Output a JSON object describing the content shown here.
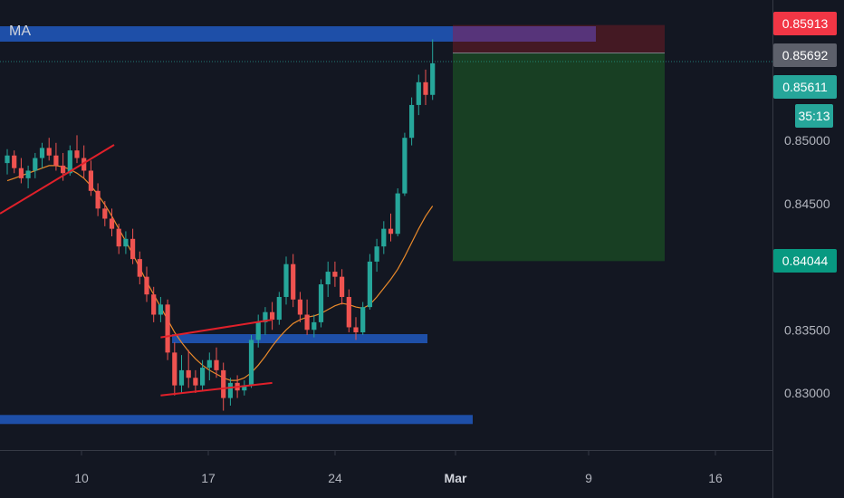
{
  "chart_data": {
    "type": "candlestick",
    "indicator_label": "MA",
    "y_axis": {
      "ticks": [
        0.83,
        0.835,
        0.84,
        0.845,
        0.85
      ],
      "tick_labels": [
        "0.83000",
        "0.83500",
        "0.84000",
        "0.84500",
        "0.85000"
      ]
    },
    "x_axis": {
      "tick_labels": [
        "10",
        "17",
        "24",
        "Mar",
        "9",
        "16"
      ]
    },
    "price_tags": [
      {
        "name": "stop-loss",
        "label": "0.85913",
        "value": 0.85913,
        "color": "#f23645"
      },
      {
        "name": "entry",
        "label": "0.85692",
        "value": 0.85692,
        "color": "#5d606b"
      },
      {
        "name": "last-price",
        "label": "0.85611",
        "value": 0.85611,
        "color": "#26a69a"
      },
      {
        "name": "countdown",
        "label": "35:13",
        "color": "#26a69a"
      },
      {
        "name": "take-profit",
        "label": "0.84044",
        "value": 0.84044,
        "color": "#089981"
      }
    ],
    "candles": {
      "up_color": "#26a69a",
      "down_color": "#ef5350",
      "ohlc": [
        [
          0.8482,
          0.8493,
          0.8473,
          0.8488
        ],
        [
          0.8488,
          0.8492,
          0.8474,
          0.8478
        ],
        [
          0.8478,
          0.8486,
          0.8466,
          0.847
        ],
        [
          0.847,
          0.848,
          0.8462,
          0.8476
        ],
        [
          0.8476,
          0.849,
          0.847,
          0.8486
        ],
        [
          0.8486,
          0.8498,
          0.8478,
          0.8494
        ],
        [
          0.8494,
          0.8502,
          0.8484,
          0.8488
        ],
        [
          0.8488,
          0.8498,
          0.8476,
          0.848
        ],
        [
          0.848,
          0.849,
          0.8468,
          0.8474
        ],
        [
          0.8474,
          0.8496,
          0.8472,
          0.8492
        ],
        [
          0.8492,
          0.8504,
          0.8482,
          0.8486
        ],
        [
          0.8486,
          0.8496,
          0.847,
          0.8476
        ],
        [
          0.8476,
          0.8484,
          0.8456,
          0.846
        ],
        [
          0.846,
          0.8466,
          0.844,
          0.8446
        ],
        [
          0.8446,
          0.8452,
          0.8432,
          0.8438
        ],
        [
          0.8438,
          0.8446,
          0.8424,
          0.843
        ],
        [
          0.843,
          0.8434,
          0.841,
          0.8416
        ],
        [
          0.8416,
          0.8428,
          0.841,
          0.8422
        ],
        [
          0.8422,
          0.843,
          0.8402,
          0.8406
        ],
        [
          0.8406,
          0.8412,
          0.8386,
          0.8392
        ],
        [
          0.8392,
          0.84,
          0.8372,
          0.8378
        ],
        [
          0.8378,
          0.8384,
          0.8356,
          0.8362
        ],
        [
          0.8362,
          0.8376,
          0.8356,
          0.837
        ],
        [
          0.837,
          0.8374,
          0.8326,
          0.8332
        ],
        [
          0.8332,
          0.834,
          0.8298,
          0.8306
        ],
        [
          0.8306,
          0.833,
          0.83,
          0.8318
        ],
        [
          0.8318,
          0.8334,
          0.8304,
          0.8312
        ],
        [
          0.8312,
          0.8318,
          0.83,
          0.8306
        ],
        [
          0.8306,
          0.8326,
          0.8302,
          0.832
        ],
        [
          0.832,
          0.8332,
          0.831,
          0.8326
        ],
        [
          0.8326,
          0.8336,
          0.8312,
          0.8318
        ],
        [
          0.8318,
          0.8324,
          0.8286,
          0.8296
        ],
        [
          0.8296,
          0.8312,
          0.829,
          0.8308
        ],
        [
          0.8308,
          0.8314,
          0.8296,
          0.8302
        ],
        [
          0.8302,
          0.831,
          0.8298,
          0.8306
        ],
        [
          0.8306,
          0.8346,
          0.8304,
          0.8342
        ],
        [
          0.8342,
          0.8362,
          0.8336,
          0.8356
        ],
        [
          0.8356,
          0.8368,
          0.8346,
          0.8364
        ],
        [
          0.8364,
          0.8372,
          0.835,
          0.8358
        ],
        [
          0.8358,
          0.838,
          0.8354,
          0.8376
        ],
        [
          0.8376,
          0.8408,
          0.837,
          0.8402
        ],
        [
          0.8402,
          0.841,
          0.8368,
          0.8374
        ],
        [
          0.8374,
          0.838,
          0.8356,
          0.8362
        ],
        [
          0.8362,
          0.8374,
          0.8346,
          0.835
        ],
        [
          0.835,
          0.8362,
          0.8344,
          0.8356
        ],
        [
          0.8356,
          0.839,
          0.8352,
          0.8386
        ],
        [
          0.8386,
          0.8404,
          0.8376,
          0.8396
        ],
        [
          0.8396,
          0.8404,
          0.8384,
          0.8392
        ],
        [
          0.8392,
          0.8398,
          0.837,
          0.8376
        ],
        [
          0.8376,
          0.8382,
          0.8348,
          0.8352
        ],
        [
          0.8352,
          0.836,
          0.8342,
          0.8348
        ],
        [
          0.8348,
          0.8372,
          0.8346,
          0.8368
        ],
        [
          0.8368,
          0.841,
          0.8366,
          0.8404
        ],
        [
          0.8404,
          0.8422,
          0.8396,
          0.8416
        ],
        [
          0.8416,
          0.8436,
          0.841,
          0.843
        ],
        [
          0.843,
          0.8442,
          0.842,
          0.8426
        ],
        [
          0.8426,
          0.8462,
          0.8424,
          0.8458
        ],
        [
          0.8458,
          0.8506,
          0.8456,
          0.8502
        ],
        [
          0.8502,
          0.8534,
          0.8496,
          0.8528
        ],
        [
          0.8528,
          0.8552,
          0.852,
          0.8546
        ],
        [
          0.8546,
          0.8556,
          0.8528,
          0.8536
        ],
        [
          0.8536,
          0.858,
          0.8532,
          0.8561
        ]
      ]
    },
    "moving_average": {
      "color": "#e8892a",
      "values": [
        0.8468,
        0.847,
        0.8472,
        0.8474,
        0.8476,
        0.8478,
        0.848,
        0.848,
        0.8479,
        0.8477,
        0.8474,
        0.847,
        0.8464,
        0.8457,
        0.8449,
        0.844,
        0.843,
        0.842,
        0.841,
        0.8399,
        0.8388,
        0.8378,
        0.8368,
        0.8358,
        0.8348,
        0.834,
        0.8333,
        0.8327,
        0.8322,
        0.8318,
        0.8315,
        0.8312,
        0.831,
        0.831,
        0.8312,
        0.8316,
        0.8322,
        0.8329,
        0.8337,
        0.8344,
        0.835,
        0.8355,
        0.8358,
        0.836,
        0.8361,
        0.8363,
        0.8366,
        0.8369,
        0.8371,
        0.837,
        0.8368,
        0.8367,
        0.837,
        0.8376,
        0.8383,
        0.839,
        0.8398,
        0.8408,
        0.8419,
        0.843,
        0.844,
        0.8448
      ]
    },
    "horizontal_zones": [
      {
        "name": "resistance-zone-top",
        "level": 0.8597,
        "color": "#1e4fa8"
      },
      {
        "name": "support-zone-mid",
        "level": 0.8343,
        "color": "#1e4fa8"
      },
      {
        "name": "support-zone-bottom",
        "level": 0.8279,
        "color": "#1e4fa8"
      }
    ],
    "trend_lines": [
      {
        "name": "uptrend-line-early",
        "from": [
          0,
          0.8442
        ],
        "to": [
          14,
          0.8496
        ],
        "color": "#e0202a"
      },
      {
        "name": "wedge-upper-line",
        "from": [
          22,
          0.8344
        ],
        "to": [
          38,
          0.8358
        ],
        "color": "#e0202a"
      },
      {
        "name": "wedge-lower-line",
        "from": [
          22,
          0.8298
        ],
        "to": [
          38,
          0.8308
        ],
        "color": "#e0202a"
      }
    ],
    "short_position": {
      "entry": 0.85692,
      "stop": 0.85913,
      "target": 0.84044,
      "profit_color": "#1a4424",
      "loss_color": "#4a1a24"
    }
  }
}
